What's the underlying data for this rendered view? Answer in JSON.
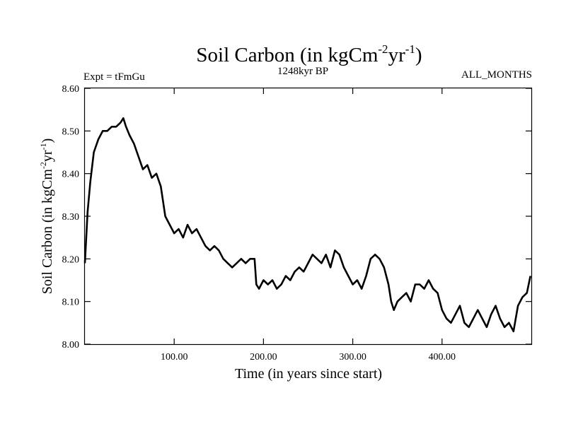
{
  "chart_data": {
    "type": "line",
    "title_main": "Soil Carbon (in kgCm",
    "title_sup1": "-2",
    "title_mid": "yr",
    "title_sup2": "-1",
    "title_end": ")",
    "subtitle_left": "Expt = tFmGu",
    "subtitle_center": "1248kyr BP",
    "subtitle_right": "ALL_MONTHS",
    "xlabel": "Time (in years since start)",
    "ylabel_main": "Soil Carbon (in kgCm",
    "ylabel_sup1": "-2",
    "ylabel_mid": "yr",
    "ylabel_sup2": "-1",
    "ylabel_end": ")",
    "xlim": [
      0,
      500
    ],
    "ylim": [
      8.0,
      8.6
    ],
    "xticks": [
      100,
      200,
      300,
      400
    ],
    "xtick_labels": [
      "100.00",
      "200.00",
      "300.00",
      "400.00"
    ],
    "yticks": [
      8.0,
      8.1,
      8.2,
      8.3,
      8.4,
      8.5,
      8.6
    ],
    "ytick_labels": [
      "8.00",
      "8.10",
      "8.20",
      "8.30",
      "8.40",
      "8.50",
      "8.60"
    ],
    "series": [
      {
        "name": "Soil Carbon",
        "color": "#000000",
        "x": [
          0,
          3,
          6,
          10,
          15,
          20,
          25,
          30,
          35,
          40,
          43,
          46,
          50,
          55,
          60,
          65,
          70,
          75,
          80,
          85,
          90,
          95,
          100,
          105,
          110,
          115,
          120,
          125,
          130,
          135,
          140,
          145,
          150,
          155,
          160,
          165,
          170,
          175,
          180,
          185,
          190,
          192,
          195,
          200,
          205,
          210,
          215,
          220,
          225,
          230,
          235,
          240,
          245,
          250,
          255,
          260,
          265,
          270,
          275,
          280,
          285,
          290,
          295,
          300,
          305,
          310,
          315,
          320,
          325,
          330,
          335,
          340,
          343,
          346,
          350,
          355,
          360,
          365,
          370,
          375,
          380,
          385,
          390,
          395,
          400,
          405,
          410,
          415,
          420,
          425,
          430,
          435,
          440,
          445,
          450,
          455,
          460,
          465,
          470,
          475,
          480,
          485,
          490,
          495,
          499
        ],
        "y": [
          8.19,
          8.31,
          8.38,
          8.45,
          8.48,
          8.5,
          8.5,
          8.51,
          8.51,
          8.52,
          8.53,
          8.51,
          8.49,
          8.47,
          8.44,
          8.41,
          8.42,
          8.39,
          8.4,
          8.37,
          8.3,
          8.28,
          8.26,
          8.27,
          8.25,
          8.28,
          8.26,
          8.27,
          8.25,
          8.23,
          8.22,
          8.23,
          8.22,
          8.2,
          8.19,
          8.18,
          8.19,
          8.2,
          8.19,
          8.2,
          8.2,
          8.14,
          8.13,
          8.15,
          8.14,
          8.15,
          8.13,
          8.14,
          8.16,
          8.15,
          8.17,
          8.18,
          8.17,
          8.19,
          8.21,
          8.2,
          8.19,
          8.21,
          8.18,
          8.22,
          8.21,
          8.18,
          8.16,
          8.14,
          8.15,
          8.13,
          8.16,
          8.2,
          8.21,
          8.2,
          8.18,
          8.14,
          8.1,
          8.08,
          8.1,
          8.11,
          8.12,
          8.1,
          8.14,
          8.14,
          8.13,
          8.15,
          8.13,
          8.12,
          8.08,
          8.06,
          8.05,
          8.07,
          8.09,
          8.05,
          8.04,
          8.06,
          8.08,
          8.06,
          8.04,
          8.07,
          8.09,
          8.06,
          8.04,
          8.05,
          8.03,
          8.09,
          8.11,
          8.12,
          8.16
        ]
      }
    ]
  }
}
